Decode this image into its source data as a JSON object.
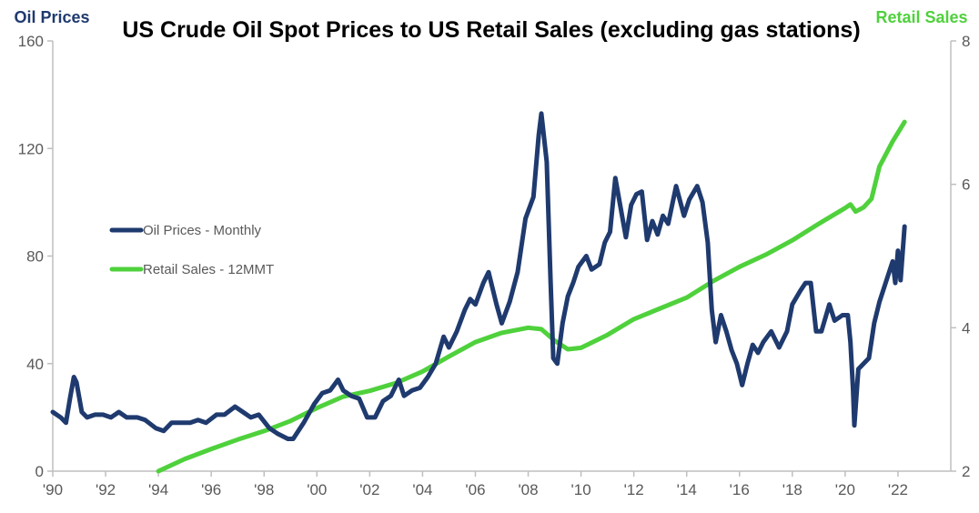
{
  "chart_data": {
    "type": "line",
    "title": "US Crude Oil Spot Prices to US Retail Sales (excluding gas stations)",
    "ylabel_left": "Oil Prices",
    "ylabel_right": "Retail Sales",
    "ylim_left": [
      0,
      160
    ],
    "ylim_right": [
      2,
      8
    ],
    "xlim": [
      1990,
      2024
    ],
    "grid": false,
    "legend_position": "left",
    "x_tick_labels": [
      "'90",
      "'92",
      "'94",
      "'96",
      "'98",
      "'00",
      "'02",
      "'04",
      "'06",
      "'08",
      "'10",
      "'12",
      "'14",
      "'16",
      "'18",
      "'20",
      "'22"
    ],
    "y_left_tick_labels": [
      "0",
      "40",
      "80",
      "120",
      "160"
    ],
    "y_right_tick_labels": [
      "2",
      "4",
      "6",
      "8"
    ],
    "series": [
      {
        "name": "Oil Prices - Monthly",
        "axis": "left",
        "color": "#1f3a6e",
        "points": [
          [
            1990.0,
            22
          ],
          [
            1990.3,
            20
          ],
          [
            1990.5,
            18
          ],
          [
            1990.65,
            27
          ],
          [
            1990.8,
            35
          ],
          [
            1990.9,
            33
          ],
          [
            1991.1,
            22
          ],
          [
            1991.3,
            20
          ],
          [
            1991.6,
            21
          ],
          [
            1991.9,
            21
          ],
          [
            1992.2,
            20
          ],
          [
            1992.5,
            22
          ],
          [
            1992.8,
            20
          ],
          [
            1993.2,
            20
          ],
          [
            1993.5,
            19
          ],
          [
            1993.9,
            16
          ],
          [
            1994.2,
            15
          ],
          [
            1994.5,
            18
          ],
          [
            1994.8,
            18
          ],
          [
            1995.2,
            18
          ],
          [
            1995.5,
            19
          ],
          [
            1995.8,
            18
          ],
          [
            1996.2,
            21
          ],
          [
            1996.5,
            21
          ],
          [
            1996.9,
            24
          ],
          [
            1997.2,
            22
          ],
          [
            1997.5,
            20
          ],
          [
            1997.8,
            21
          ],
          [
            1998.2,
            16
          ],
          [
            1998.5,
            14
          ],
          [
            1998.9,
            12
          ],
          [
            1999.1,
            12
          ],
          [
            1999.5,
            18
          ],
          [
            1999.9,
            25
          ],
          [
            2000.2,
            29
          ],
          [
            2000.5,
            30
          ],
          [
            2000.8,
            34
          ],
          [
            2001.0,
            30
          ],
          [
            2001.3,
            28
          ],
          [
            2001.6,
            27
          ],
          [
            2001.9,
            20
          ],
          [
            2002.2,
            20
          ],
          [
            2002.5,
            26
          ],
          [
            2002.8,
            28
          ],
          [
            2003.1,
            34
          ],
          [
            2003.3,
            28
          ],
          [
            2003.6,
            30
          ],
          [
            2003.9,
            31
          ],
          [
            2004.2,
            35
          ],
          [
            2004.5,
            40
          ],
          [
            2004.8,
            50
          ],
          [
            2005.0,
            46
          ],
          [
            2005.3,
            52
          ],
          [
            2005.6,
            60
          ],
          [
            2005.8,
            64
          ],
          [
            2006.0,
            62
          ],
          [
            2006.3,
            70
          ],
          [
            2006.5,
            74
          ],
          [
            2006.8,
            62
          ],
          [
            2007.0,
            55
          ],
          [
            2007.3,
            63
          ],
          [
            2007.6,
            74
          ],
          [
            2007.9,
            94
          ],
          [
            2008.2,
            102
          ],
          [
            2008.4,
            125
          ],
          [
            2008.5,
            133
          ],
          [
            2008.7,
            115
          ],
          [
            2008.85,
            70
          ],
          [
            2008.95,
            42
          ],
          [
            2009.1,
            40
          ],
          [
            2009.3,
            55
          ],
          [
            2009.5,
            65
          ],
          [
            2009.7,
            70
          ],
          [
            2009.9,
            76
          ],
          [
            2010.2,
            80
          ],
          [
            2010.4,
            75
          ],
          [
            2010.7,
            77
          ],
          [
            2010.9,
            85
          ],
          [
            2011.1,
            89
          ],
          [
            2011.3,
            109
          ],
          [
            2011.5,
            98
          ],
          [
            2011.7,
            87
          ],
          [
            2011.9,
            99
          ],
          [
            2012.1,
            103
          ],
          [
            2012.3,
            104
          ],
          [
            2012.5,
            86
          ],
          [
            2012.7,
            93
          ],
          [
            2012.9,
            88
          ],
          [
            2013.1,
            95
          ],
          [
            2013.3,
            92
          ],
          [
            2013.6,
            106
          ],
          [
            2013.9,
            95
          ],
          [
            2014.1,
            101
          ],
          [
            2014.4,
            106
          ],
          [
            2014.6,
            100
          ],
          [
            2014.8,
            85
          ],
          [
            2014.95,
            60
          ],
          [
            2015.1,
            48
          ],
          [
            2015.3,
            58
          ],
          [
            2015.5,
            52
          ],
          [
            2015.7,
            45
          ],
          [
            2015.9,
            40
          ],
          [
            2016.1,
            32
          ],
          [
            2016.3,
            40
          ],
          [
            2016.5,
            47
          ],
          [
            2016.7,
            44
          ],
          [
            2016.9,
            48
          ],
          [
            2017.2,
            52
          ],
          [
            2017.5,
            46
          ],
          [
            2017.8,
            52
          ],
          [
            2018.0,
            62
          ],
          [
            2018.3,
            67
          ],
          [
            2018.5,
            70
          ],
          [
            2018.7,
            70
          ],
          [
            2018.9,
            52
          ],
          [
            2019.1,
            52
          ],
          [
            2019.4,
            62
          ],
          [
            2019.6,
            56
          ],
          [
            2019.9,
            58
          ],
          [
            2020.1,
            58
          ],
          [
            2020.2,
            48
          ],
          [
            2020.3,
            30
          ],
          [
            2020.35,
            17
          ],
          [
            2020.5,
            38
          ],
          [
            2020.7,
            40
          ],
          [
            2020.9,
            42
          ],
          [
            2021.1,
            55
          ],
          [
            2021.3,
            63
          ],
          [
            2021.6,
            72
          ],
          [
            2021.8,
            78
          ],
          [
            2021.9,
            70
          ],
          [
            2022.0,
            82
          ],
          [
            2022.1,
            71
          ],
          [
            2022.25,
            91
          ]
        ]
      },
      {
        "name": "Retail Sales - 12MMT",
        "axis": "right",
        "color": "#4fd13c",
        "points": [
          [
            1994.0,
            2.0
          ],
          [
            1995.0,
            2.17
          ],
          [
            1996.0,
            2.31
          ],
          [
            1997.0,
            2.44
          ],
          [
            1998.0,
            2.56
          ],
          [
            1999.0,
            2.7
          ],
          [
            2000.0,
            2.88
          ],
          [
            2001.0,
            3.04
          ],
          [
            2002.0,
            3.12
          ],
          [
            2003.0,
            3.23
          ],
          [
            2004.0,
            3.39
          ],
          [
            2005.0,
            3.6
          ],
          [
            2006.0,
            3.8
          ],
          [
            2007.0,
            3.93
          ],
          [
            2008.0,
            4.0
          ],
          [
            2008.5,
            3.98
          ],
          [
            2009.0,
            3.82
          ],
          [
            2009.5,
            3.7
          ],
          [
            2010.0,
            3.72
          ],
          [
            2011.0,
            3.9
          ],
          [
            2012.0,
            4.12
          ],
          [
            2013.0,
            4.27
          ],
          [
            2014.0,
            4.42
          ],
          [
            2015.0,
            4.65
          ],
          [
            2016.0,
            4.85
          ],
          [
            2017.0,
            5.02
          ],
          [
            2018.0,
            5.22
          ],
          [
            2019.0,
            5.45
          ],
          [
            2020.0,
            5.67
          ],
          [
            2020.2,
            5.72
          ],
          [
            2020.4,
            5.62
          ],
          [
            2020.7,
            5.68
          ],
          [
            2021.0,
            5.8
          ],
          [
            2021.3,
            6.25
          ],
          [
            2021.8,
            6.6
          ],
          [
            2022.25,
            6.87
          ]
        ]
      }
    ]
  }
}
